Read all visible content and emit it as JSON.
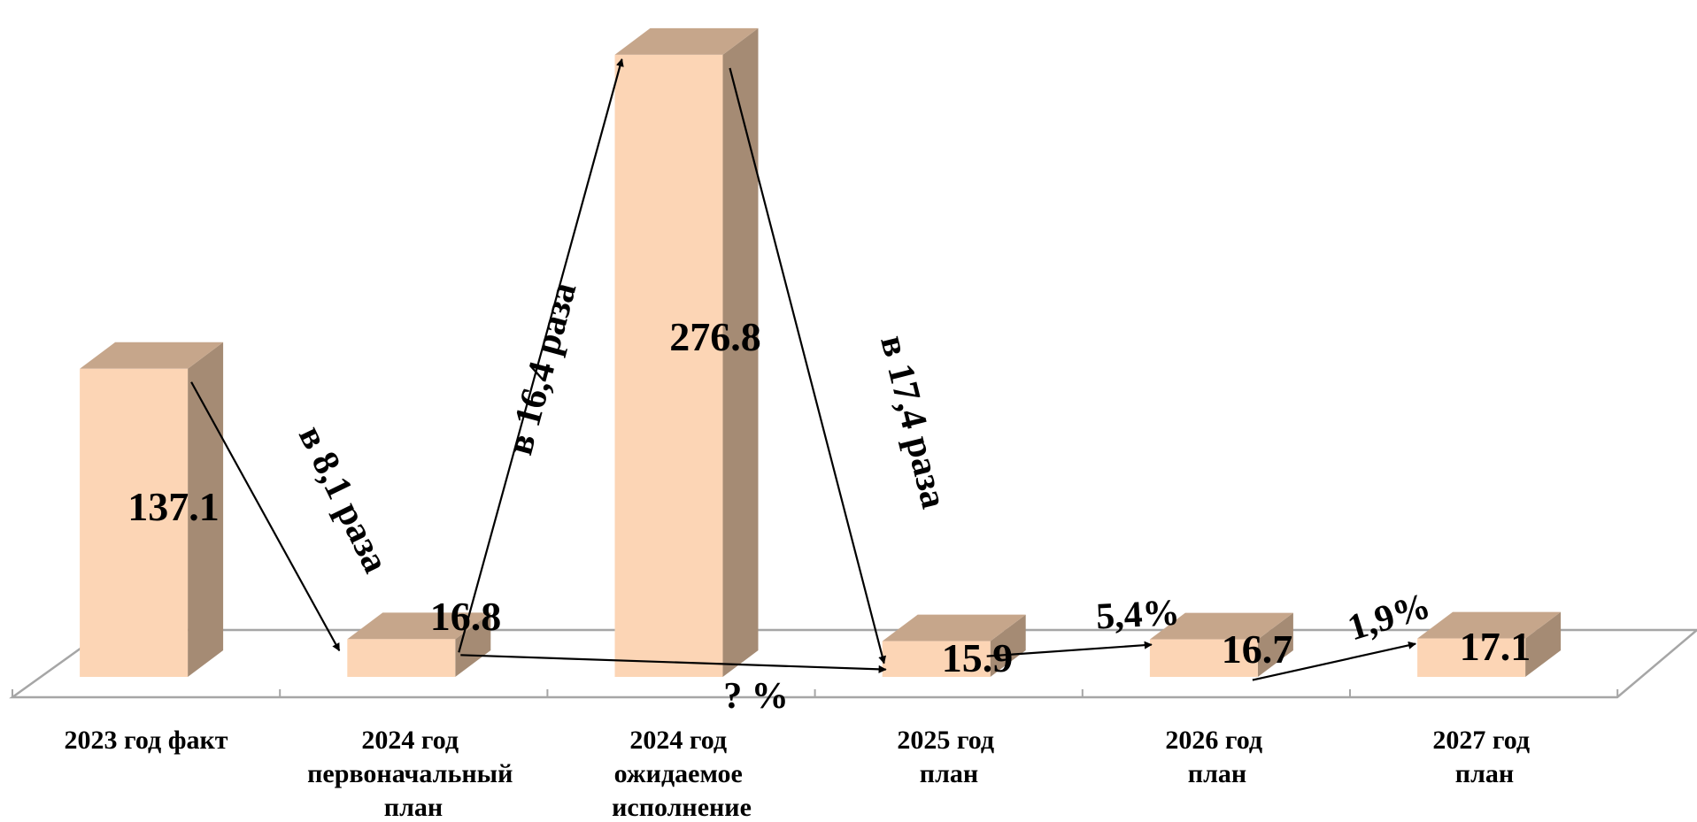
{
  "chart_data": {
    "type": "bar",
    "categories": [
      [
        "2023 год факт"
      ],
      [
        "2024 год",
        "первоначальный",
        "план"
      ],
      [
        "2024 год",
        "ожидаемое",
        "исполнение"
      ],
      [
        "2025 год",
        "план"
      ],
      [
        "2026 год",
        "план"
      ],
      [
        "2027 год",
        "план"
      ]
    ],
    "values": [
      137.1,
      16.8,
      276.8,
      15.9,
      16.7,
      17.1
    ],
    "value_labels": [
      "137.1",
      "16.8",
      "276.8",
      "15.9",
      "16.7",
      "17.1"
    ],
    "annotations": [
      {
        "text": "в 8,1 раза",
        "from": 0,
        "to": 1
      },
      {
        "text": "в 16,4 раза",
        "from": 1,
        "to": 2
      },
      {
        "text": "в 17,4 раза",
        "from": 2,
        "to": 3
      },
      {
        "text": "? %",
        "from": 1,
        "to": 3
      },
      {
        "text": "5,4%",
        "from": 3,
        "to": 4
      },
      {
        "text": "1,9%",
        "from": 4,
        "to": 5
      }
    ],
    "colors": {
      "front": "#fcd5b5",
      "side": "#a58b74",
      "top": "#c6a68b",
      "floor": "#a6a6a6"
    },
    "grid": false,
    "legend": "none"
  }
}
